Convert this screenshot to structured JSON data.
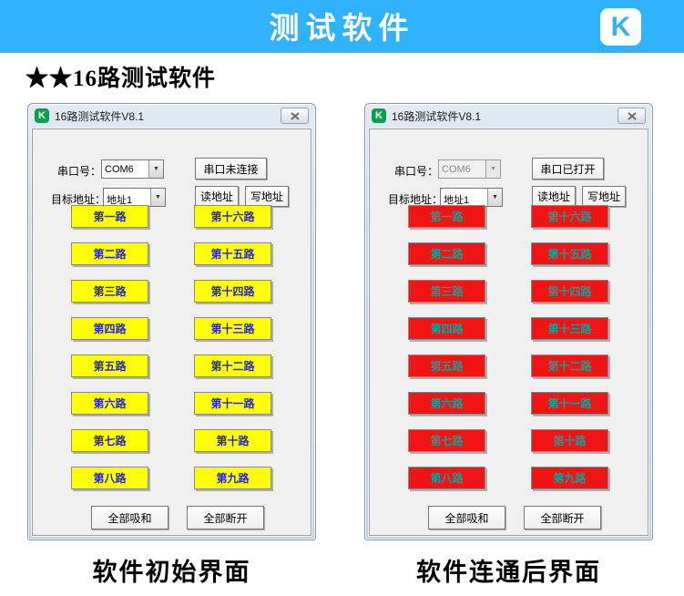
{
  "banner": {
    "title": "测试软件",
    "logo_letter": "K",
    "bg_color": "#2fb1fb"
  },
  "heading": "★★16路测试软件",
  "icons": {
    "dropdown_arrow": "▼"
  },
  "windows": [
    {
      "title": "16路测试软件V8.1",
      "serial_label": "串口号：",
      "serial_port": "COM6",
      "status_button": "串口未连接",
      "address_label": "目标地址：",
      "address_value": "地址1",
      "read_button": "读地址",
      "write_button": "写地址",
      "left_channels": [
        "第一路",
        "第二路",
        "第三路",
        "第四路",
        "第五路",
        "第六路",
        "第七路",
        "第八路"
      ],
      "right_channels": [
        "第十六路",
        "第十五路",
        "第十四路",
        "第十三路",
        "第十二路",
        "第十一路",
        "第十路",
        "第九路"
      ],
      "all_engage_button": "全部吸和",
      "all_disconnect_button": "全部断开",
      "channel_bg": "#ffff00",
      "channel_fg": "#2626cd",
      "caption": "软件初始界面"
    },
    {
      "title": "16路测试软件V8.1",
      "serial_label": "串口号：",
      "serial_port": "COM6",
      "status_button": "串口已打开",
      "address_label": "目标地址：",
      "address_value": "地址1",
      "read_button": "读地址",
      "write_button": "写地址",
      "left_channels": [
        "第一路",
        "第二路",
        "第三路",
        "第四路",
        "第五路",
        "第六路",
        "第七路",
        "第八路"
      ],
      "right_channels": [
        "第十六路",
        "第十五路",
        "第十四路",
        "第十三路",
        "第十二路",
        "第十一路",
        "第十路",
        "第九路"
      ],
      "all_engage_button": "全部吸和",
      "all_disconnect_button": "全部断开",
      "channel_bg": "#f01414",
      "channel_fg": "#12a09a",
      "caption": "软件连通后界面"
    }
  ]
}
